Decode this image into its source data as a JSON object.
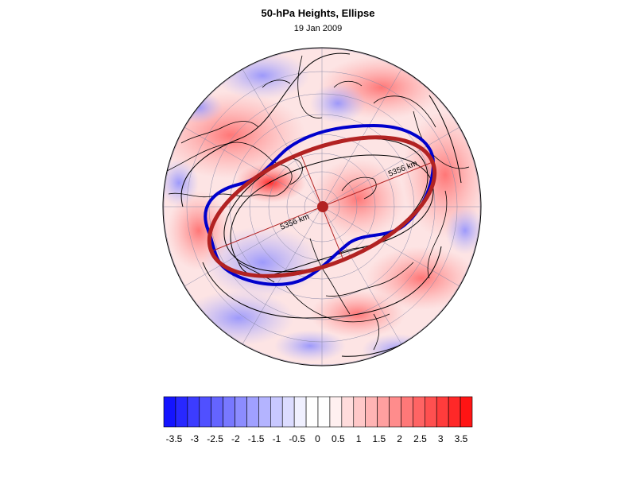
{
  "figure": {
    "title": "50-hPa Heights, Ellipse",
    "date": "19 Jan 2009"
  },
  "map": {
    "projection": "north-polar-stereographic",
    "field": "50-hPa height anomaly (shaded)",
    "contour_labels": [
      "5356 km",
      "5356 km"
    ],
    "contour_colors": {
      "geopotential": "#000000",
      "target_contour": "#0000cc",
      "fitted_ellipse": "#b22222",
      "centroid": "#b22222"
    }
  },
  "colorbar": {
    "levels": [
      -3.5,
      -3,
      -2.5,
      -2,
      -1.5,
      -1,
      -0.5,
      0,
      0.5,
      1,
      1.5,
      2,
      2.5,
      3,
      3.5
    ],
    "tick_labels": [
      "-3.5",
      "-3",
      "-2.5",
      "-2",
      "-1.5",
      "-1",
      "-0.5",
      "0",
      "0.5",
      "1",
      "1.5",
      "2",
      "2.5",
      "3",
      "3.5"
    ],
    "colors": [
      "#1414ff",
      "#2828ff",
      "#3c3cff",
      "#5050ff",
      "#6464ff",
      "#7878ff",
      "#8c8cff",
      "#a0a0ff",
      "#b4b4ff",
      "#c8c8ff",
      "#dcdcff",
      "#f0f0ff",
      "#ffffff",
      "#ffffff",
      "#fff0f0",
      "#ffdcdc",
      "#ffc8c8",
      "#ffb4b4",
      "#ffa0a0",
      "#ff8c8c",
      "#ff7878",
      "#ff6464",
      "#ff5050",
      "#ff3c3c",
      "#ff2828",
      "#ff1414"
    ]
  }
}
